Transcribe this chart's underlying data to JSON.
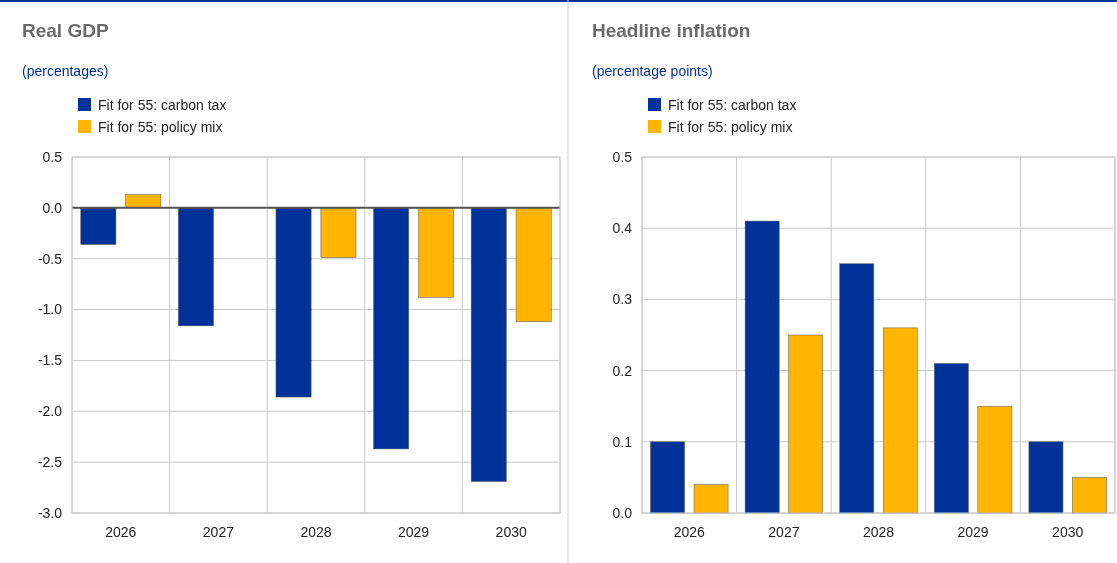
{
  "chart_data": [
    {
      "type": "bar",
      "title": "Real GDP",
      "subtitle": "(percentages)",
      "categories": [
        "2026",
        "2027",
        "2028",
        "2029",
        "2030"
      ],
      "series": [
        {
          "name": "Fit for 55: carbon tax",
          "color": "#003299",
          "values": [
            -0.36,
            -1.16,
            -1.86,
            -2.37,
            -2.69
          ]
        },
        {
          "name": "Fit for 55: policy mix",
          "color": "#ffb400",
          "values": [
            0.13,
            null,
            -0.49,
            -0.88,
            -1.12
          ]
        }
      ],
      "ylim": [
        -3.0,
        0.5
      ],
      "yticks": [
        {
          "value": -3.0,
          "label": "-3.0"
        },
        {
          "value": -2.5,
          "label": "-2.5"
        },
        {
          "value": -2.0,
          "label": "-2.0"
        },
        {
          "value": -1.5,
          "label": "-1.5"
        },
        {
          "value": -1.0,
          "label": "-1.0"
        },
        {
          "value": -0.5,
          "label": "-0.5"
        },
        {
          "value": 0,
          "label": "0.0"
        },
        0.5
      ],
      "grid": true,
      "legend": "top left"
    },
    {
      "type": "bar",
      "title": "Headline inflation",
      "subtitle": "(percentage points)",
      "categories": [
        "2026",
        "2027",
        "2028",
        "2029",
        "2030"
      ],
      "series": [
        {
          "name": "Fit for 55: carbon tax",
          "color": "#003299",
          "values": [
            0.1,
            0.41,
            0.35,
            0.21,
            0.1
          ]
        },
        {
          "name": "Fit for 55: policy mix",
          "color": "#ffb400",
          "values": [
            0.04,
            0.25,
            0.26,
            0.15,
            0.05
          ]
        }
      ],
      "ylim": [
        0,
        0.5
      ],
      "yticks": [
        {
          "value": 0,
          "label": "0.0"
        },
        0.1,
        0.2,
        0.3,
        0.4,
        0.5
      ],
      "grid": true,
      "legend": "top left"
    }
  ]
}
